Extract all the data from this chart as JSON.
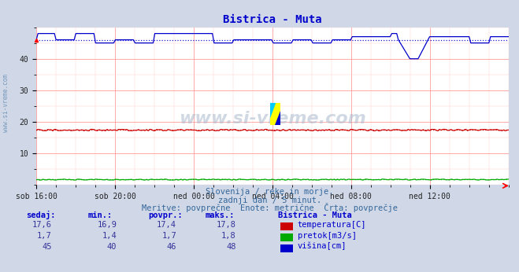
{
  "title": "Bistrica - Muta",
  "title_color": "#0000cc",
  "bg_color": "#d0d8e8",
  "plot_bg_color": "#ffffff",
  "grid_color_major": "#ff8888",
  "grid_color_minor": "#ffcccc",
  "xlabel_ticks": [
    "sob 16:00",
    "sob 20:00",
    "ned 00:00",
    "ned 04:00",
    "ned 08:00",
    "ned 12:00"
  ],
  "ylabel_ticks": [
    10,
    20,
    30,
    40
  ],
  "ylim": [
    0,
    50
  ],
  "n_points": 288,
  "temp_base": 17.4,
  "pretok_base": 1.7,
  "visina_base": 46.0,
  "temp_color": "#cc0000",
  "pretok_color": "#00aa00",
  "visina_color": "#0000cc",
  "watermark": "www.si-vreme.com",
  "left_label": "www.si-vreme.com",
  "left_label_color": "#7799bb",
  "subtitle1": "Slovenija / reke in morje.",
  "subtitle2": "zadnji dan / 5 minut.",
  "subtitle3": "Meritve: povprečne  Enote: metrične  Črta: povprečje",
  "table_headers": [
    "sedaj:",
    "min.:",
    "povpr.:",
    "maks.:"
  ],
  "table_data": [
    [
      "17,6",
      "16,9",
      "17,4",
      "17,8"
    ],
    [
      "1,7",
      "1,4",
      "1,7",
      "1,8"
    ],
    [
      "45",
      "40",
      "46",
      "48"
    ]
  ],
  "legend_labels": [
    "temperatura[C]",
    "pretok[m3/s]",
    "višina[cm]"
  ],
  "legend_colors": [
    "#cc0000",
    "#00aa00",
    "#0000cc"
  ],
  "station_label": "Bistrica - Muta",
  "logo_colors": [
    "#ffff00",
    "#00ccff",
    "#0000cc"
  ],
  "text_color": "#336699",
  "table_header_color": "#0000cc",
  "table_value_color": "#333399"
}
